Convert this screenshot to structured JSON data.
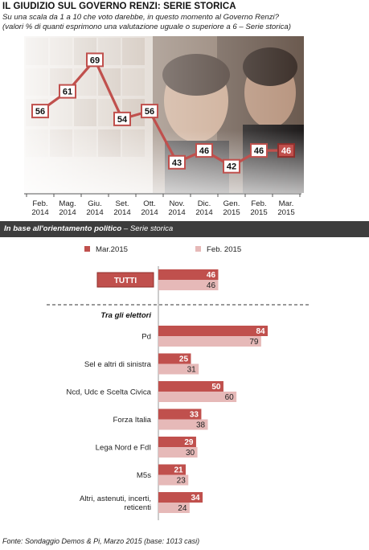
{
  "header": {
    "title": "IL GIUDIZIO SUL GOVERNO RENZI: SERIE STORICA",
    "subtitle_1": "Su una scala da 1 a 10 che voto darebbe, in questo momento al Governo Renzi?",
    "subtitle_2": "(valori % di quanti esprimono una valutazione uguale o superiore a 6 – Serie storica)"
  },
  "band": {
    "bold": "In base all'orientamento politico",
    "rest": " – Serie storica"
  },
  "footer": "Fonte: Sondaggio Demos & Pi, Marzo 2015 (base: 1013 casi)",
  "colors": {
    "accent": "#c0504d",
    "light": "#e6b9b8",
    "line": "#c0504d"
  },
  "chart_data": [
    {
      "type": "line",
      "x": [
        "Feb. 2014",
        "Mag. 2014",
        "Giu. 2014",
        "Set. 2014",
        "Ott. 2014",
        "Nov. 2014",
        "Dic. 2014",
        "Gen. 2015",
        "Feb. 2015",
        "Mar. 2015"
      ],
      "values": [
        56,
        61,
        69,
        54,
        56,
        43,
        46,
        42,
        46,
        46
      ],
      "ylim": [
        35,
        75
      ],
      "grid": false
    },
    {
      "type": "bar",
      "orientation": "horizontal",
      "legend_position": "top",
      "series": [
        {
          "name": "Mar.2015",
          "color": "#c0504d"
        },
        {
          "name": "Feb. 2015",
          "color": "#e6b9b8"
        }
      ],
      "total": {
        "label": "TUTTI",
        "values": [
          46,
          46
        ]
      },
      "group_label": "Tra gli elettori",
      "categories": [
        {
          "label": [
            "Pd"
          ],
          "values": [
            84,
            79
          ]
        },
        {
          "label": [
            "Sel e altri di sinistra"
          ],
          "values": [
            25,
            31
          ]
        },
        {
          "label": [
            "Ncd, Udc e Scelta Civica"
          ],
          "values": [
            50,
            60
          ]
        },
        {
          "label": [
            "Forza Italia"
          ],
          "values": [
            33,
            38
          ]
        },
        {
          "label": [
            "Lega Nord e FdI"
          ],
          "values": [
            29,
            30
          ]
        },
        {
          "label": [
            "M5s"
          ],
          "values": [
            21,
            23
          ]
        },
        {
          "label": [
            "Altri, astenuti, incerti,",
            "reticenti"
          ],
          "values": [
            34,
            24
          ]
        }
      ]
    }
  ]
}
